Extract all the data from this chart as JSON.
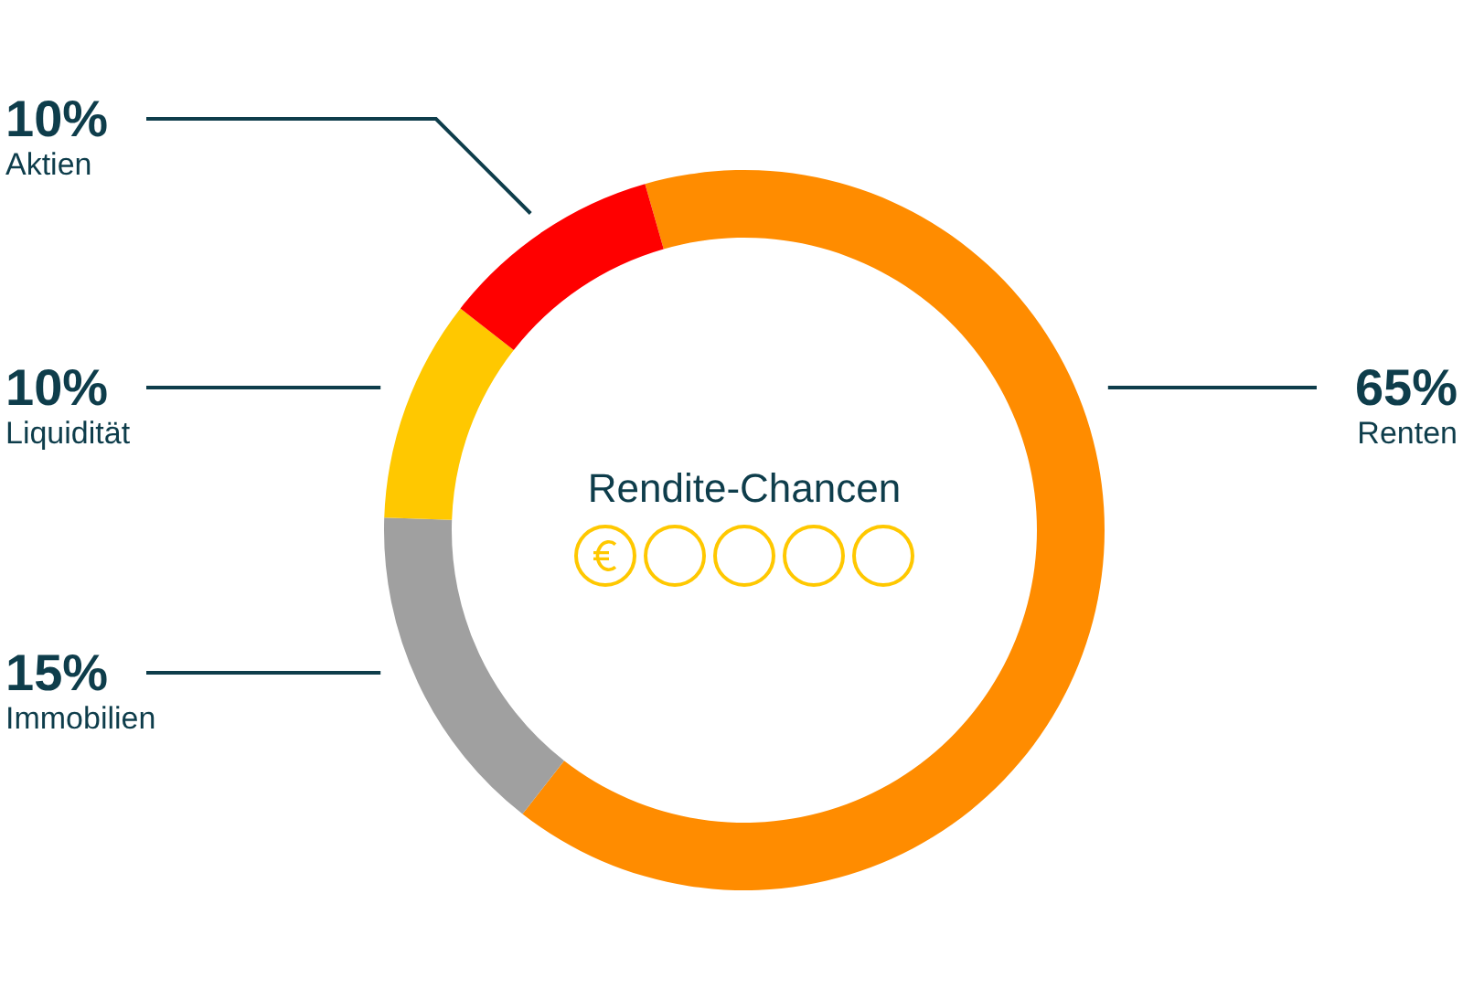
{
  "chart_data": {
    "type": "donut",
    "title": "Rendite-Chancen",
    "categories": [
      "Renten",
      "Immobilien",
      "Liquidität",
      "Aktien"
    ],
    "values": [
      65,
      15,
      10,
      10
    ],
    "colors": [
      "#ff8c00",
      "#a0a0a0",
      "#ffc800",
      "#ff0000"
    ],
    "value_labels": [
      "65%",
      "15%",
      "10%",
      "10%"
    ]
  }
}
